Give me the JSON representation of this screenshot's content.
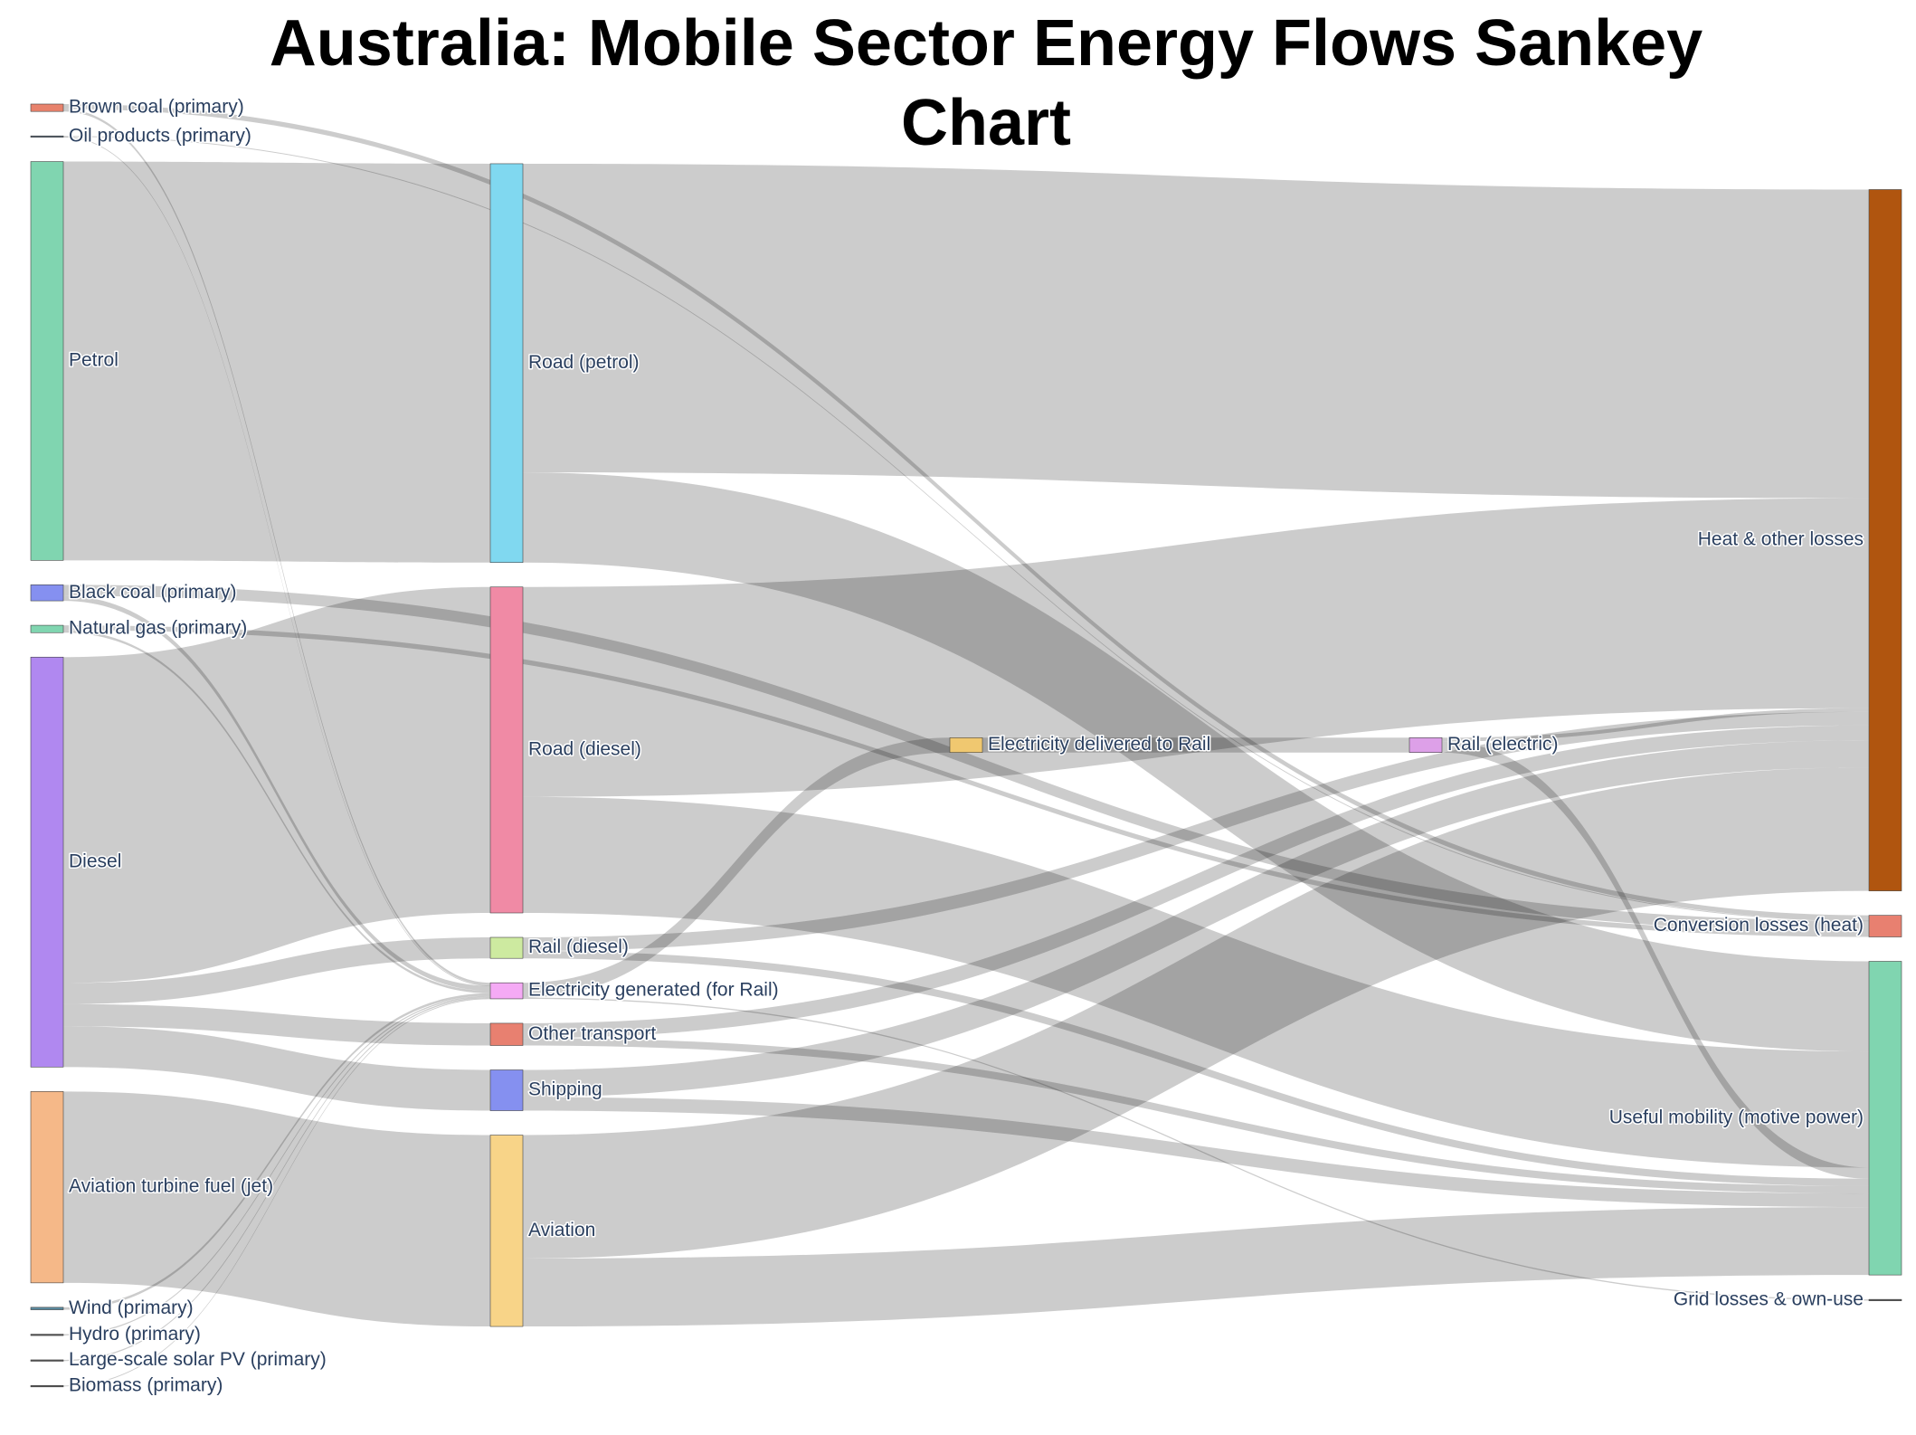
{
  "chart_data": {
    "type": "sankey",
    "title": "Australia: Mobile Sector Energy Flows Sankey Chart",
    "link_color": "rgba(0,0,0,0.2)",
    "nodes": [
      {
        "label": "Brown coal (primary)",
        "color": "#e8826c"
      },
      {
        "label": "Oil products (primary)",
        "color": "#5a6b7b"
      },
      {
        "label": "Petrol",
        "color": "#80d5b0"
      },
      {
        "label": "Black coal (primary)",
        "color": "#8590f0"
      },
      {
        "label": "Natural gas (primary)",
        "color": "#80d5b0"
      },
      {
        "label": "Diesel",
        "color": "#b088f0"
      },
      {
        "label": "Aviation turbine fuel (jet)",
        "color": "#f5b888"
      },
      {
        "label": "Wind (primary)",
        "color": "#5b8ba0"
      },
      {
        "label": "Hydro (primary)",
        "color": "#555555"
      },
      {
        "label": "Large-scale solar PV (primary)",
        "color": "#555555"
      },
      {
        "label": "Biomass (primary)",
        "color": "#555555"
      },
      {
        "label": "Road (petrol)",
        "color": "#80d8f0"
      },
      {
        "label": "Road (diesel)",
        "color": "#f08aa5"
      },
      {
        "label": "Rail (diesel)",
        "color": "#cdeaa0"
      },
      {
        "label": "Electricity generated (for Rail)",
        "color": "#f5aaf5"
      },
      {
        "label": "Other transport",
        "color": "#e88070"
      },
      {
        "label": "Shipping",
        "color": "#8590f0"
      },
      {
        "label": "Aviation",
        "color": "#f8d488"
      },
      {
        "label": "Electricity delivered to Rail",
        "color": "#f0c870"
      },
      {
        "label": "Rail (electric)",
        "color": "#dda0e8"
      },
      {
        "label": "Heat & other losses",
        "color": "#b0550f"
      },
      {
        "label": "Conversion losses (heat)",
        "color": "#e88070"
      },
      {
        "label": "Useful mobility (motive power)",
        "color": "#80d5b0"
      },
      {
        "label": "Grid losses & own-use",
        "color": "#555555"
      }
    ],
    "links": [
      {
        "source": 2,
        "target": 11,
        "value": 323
      },
      {
        "source": 5,
        "target": 12,
        "value": 264
      },
      {
        "source": 5,
        "target": 13,
        "value": 17
      },
      {
        "source": 5,
        "target": 15,
        "value": 18
      },
      {
        "source": 5,
        "target": 16,
        "value": 33
      },
      {
        "source": 6,
        "target": 17,
        "value": 155
      },
      {
        "source": 0,
        "target": 14,
        "value": 2
      },
      {
        "source": 0,
        "target": 21,
        "value": 4
      },
      {
        "source": 3,
        "target": 14,
        "value": 4
      },
      {
        "source": 3,
        "target": 21,
        "value": 9
      },
      {
        "source": 4,
        "target": 14,
        "value": 2
      },
      {
        "source": 4,
        "target": 21,
        "value": 4
      },
      {
        "source": 1,
        "target": 14,
        "value": 0.5
      },
      {
        "source": 1,
        "target": 21,
        "value": 0.5
      },
      {
        "source": 7,
        "target": 14,
        "value": 2
      },
      {
        "source": 8,
        "target": 14,
        "value": 1
      },
      {
        "source": 9,
        "target": 14,
        "value": 1
      },
      {
        "source": 10,
        "target": 14,
        "value": 0.5
      },
      {
        "source": 14,
        "target": 18,
        "value": 12
      },
      {
        "source": 14,
        "target": 23,
        "value": 1
      },
      {
        "source": 18,
        "target": 19,
        "value": 12
      },
      {
        "source": 19,
        "target": 22,
        "value": 9
      },
      {
        "source": 19,
        "target": 20,
        "value": 3
      },
      {
        "source": 11,
        "target": 20,
        "value": 250
      },
      {
        "source": 11,
        "target": 22,
        "value": 73
      },
      {
        "source": 12,
        "target": 20,
        "value": 170
      },
      {
        "source": 12,
        "target": 22,
        "value": 94
      },
      {
        "source": 13,
        "target": 20,
        "value": 11
      },
      {
        "source": 13,
        "target": 22,
        "value": 6
      },
      {
        "source": 15,
        "target": 20,
        "value": 12
      },
      {
        "source": 15,
        "target": 22,
        "value": 6
      },
      {
        "source": 16,
        "target": 20,
        "value": 22
      },
      {
        "source": 16,
        "target": 22,
        "value": 11
      },
      {
        "source": 17,
        "target": 20,
        "value": 100
      },
      {
        "source": 17,
        "target": 22,
        "value": 55
      }
    ]
  }
}
